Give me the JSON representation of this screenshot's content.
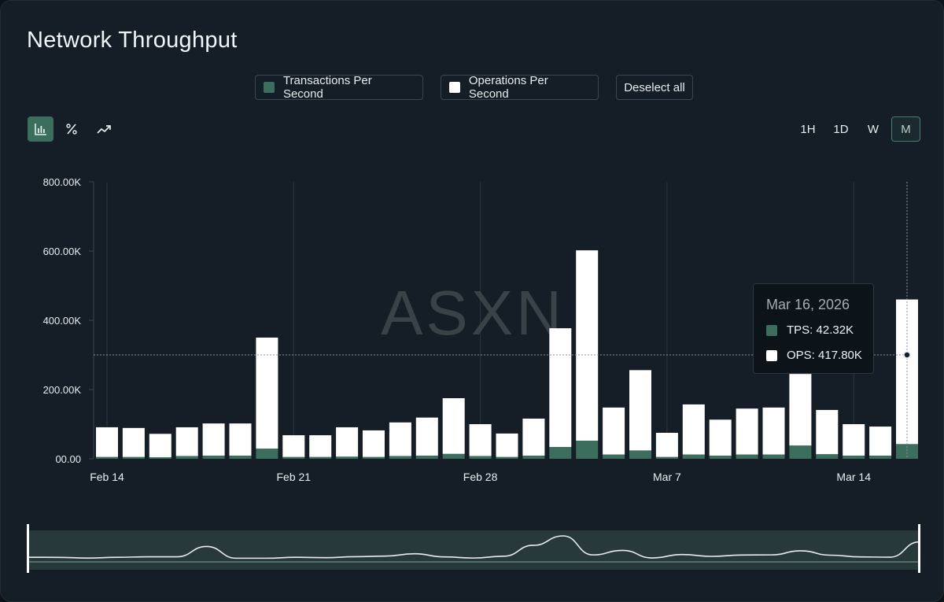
{
  "title": "Network Throughput",
  "legend": [
    {
      "label": "Transactions Per Second",
      "color": "#3b6e5c"
    },
    {
      "label": "Operations Per Second",
      "color": "#ffffff"
    }
  ],
  "deselect_label": "Deselect all",
  "toolbar": [
    {
      "icon": "bar-chart-icon",
      "active": true
    },
    {
      "icon": "percent-icon",
      "active": false
    },
    {
      "icon": "trend-line-icon",
      "active": false
    }
  ],
  "ranges": [
    {
      "label": "1H",
      "active": false
    },
    {
      "label": "1D",
      "active": false
    },
    {
      "label": "W",
      "active": false
    },
    {
      "label": "M",
      "active": true
    }
  ],
  "watermark": "ASXN",
  "tooltip": {
    "date": "Mar 16, 2026",
    "tps_label": "TPS: 42.32K",
    "ops_label": "OPS: 417.80K"
  },
  "colors": {
    "tps": "#3b6e5c",
    "ops": "#ffffff",
    "background": "#151e26",
    "accent": "#4a7d6e"
  },
  "chart_data": {
    "type": "bar",
    "stacked": true,
    "categories": [
      "Feb 14",
      "Feb 15",
      "Feb 16",
      "Feb 17",
      "Feb 18",
      "Feb 19",
      "Feb 20",
      "Feb 21",
      "Feb 22",
      "Feb 23",
      "Feb 24",
      "Feb 25",
      "Feb 26",
      "Feb 27",
      "Feb 28",
      "Mar 1",
      "Mar 2",
      "Mar 3",
      "Mar 4",
      "Mar 5",
      "Mar 6",
      "Mar 7",
      "Mar 8",
      "Mar 9",
      "Mar 10",
      "Mar 11",
      "Mar 12",
      "Mar 13",
      "Mar 14",
      "Mar 15",
      "Mar 16"
    ],
    "series": [
      {
        "name": "TPS",
        "values": [
          5,
          5,
          4,
          8,
          9,
          9,
          29,
          5,
          5,
          6,
          5,
          8,
          9,
          14,
          8,
          5,
          9,
          34,
          52,
          12,
          24,
          5,
          12,
          9,
          12,
          12,
          38,
          13,
          9,
          9,
          42.32
        ]
      },
      {
        "name": "OPS",
        "values": [
          86,
          84,
          68,
          83,
          93,
          93,
          321,
          63,
          63,
          85,
          77,
          97,
          110,
          161,
          92,
          68,
          107,
          343,
          550,
          136,
          232,
          70,
          145,
          104,
          133,
          136,
          207,
          128,
          91,
          84,
          417.8
        ]
      }
    ],
    "x_tick_labels": [
      "Feb 14",
      "Feb 21",
      "Feb 28",
      "Mar 7",
      "Mar 14"
    ],
    "y_tick_labels": [
      "00.00",
      "200.00K",
      "400.00K",
      "600.00K",
      "800.00K"
    ],
    "y_unit": "K",
    "ylim": [
      0,
      800
    ],
    "grid": "vertical",
    "highlight_category": "Mar 16",
    "crosshair_value": 300
  }
}
